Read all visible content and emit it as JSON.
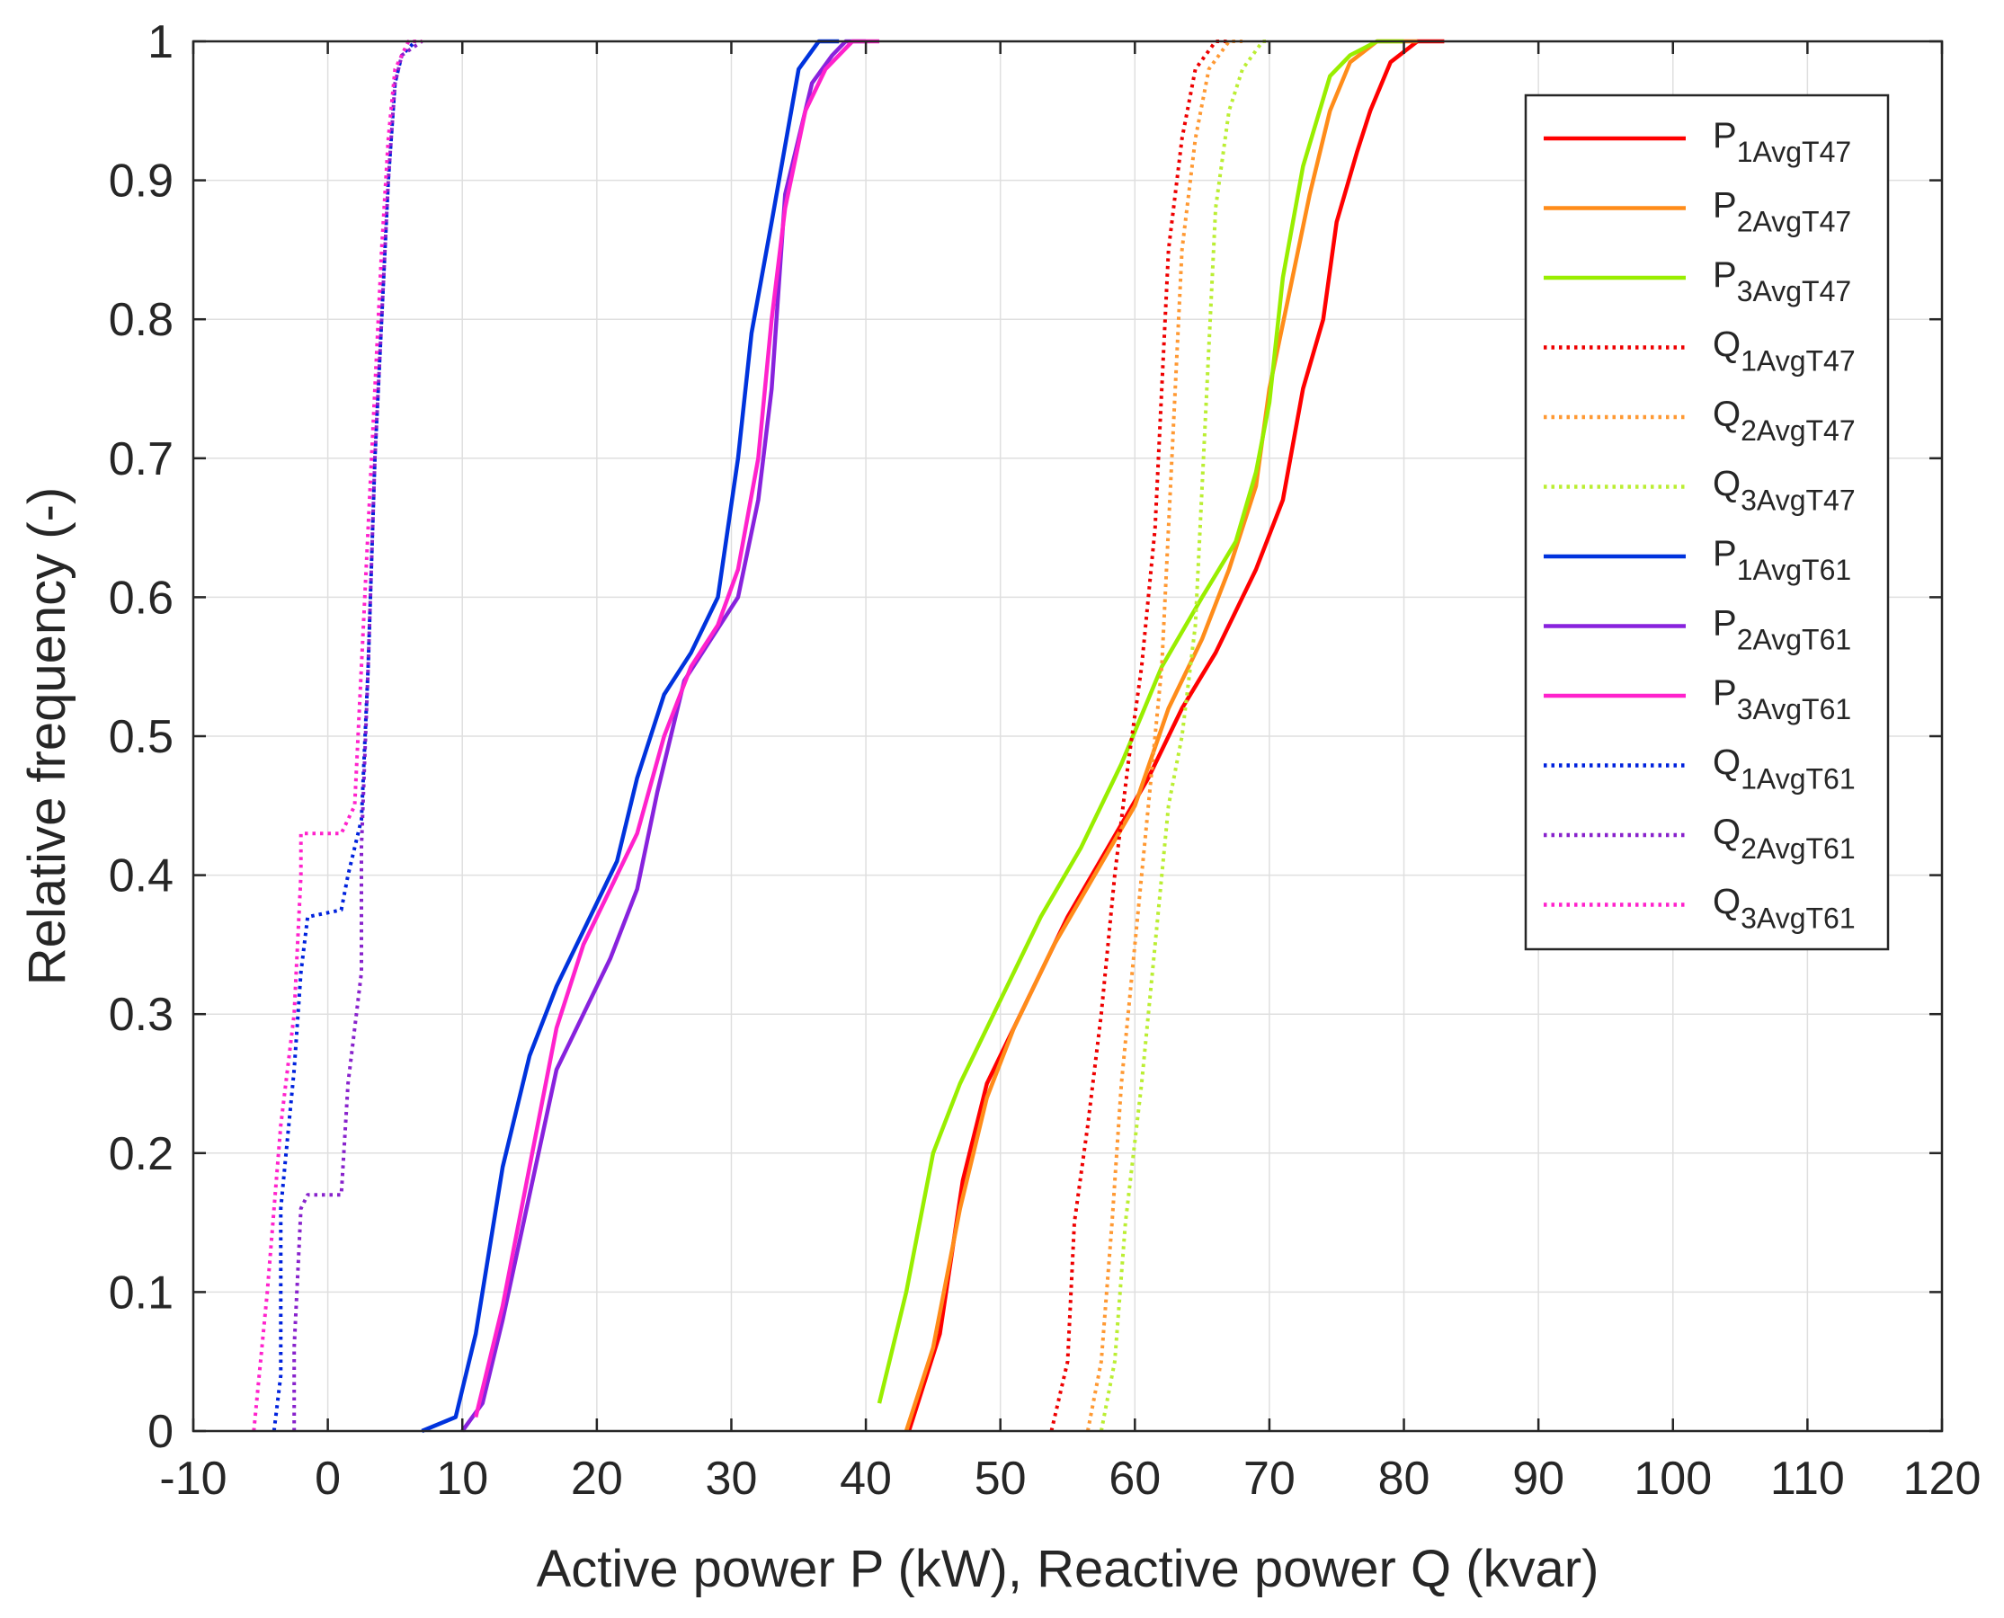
{
  "chart_data": {
    "type": "line",
    "title": "",
    "xlabel": "Active power P (kW), Reactive power Q (kvar)",
    "ylabel": "Relative frequency (-)",
    "xlim": [
      -10,
      120
    ],
    "ylim": [
      0,
      1
    ],
    "xticks": [
      -10,
      0,
      10,
      20,
      30,
      40,
      50,
      60,
      70,
      80,
      90,
      100,
      110,
      120
    ],
    "yticks": [
      0,
      0.1,
      0.2,
      0.3,
      0.4,
      0.5,
      0.6,
      0.7,
      0.8,
      0.9,
      1
    ],
    "xtick_labels": [
      "-10",
      "0",
      "10",
      "20",
      "30",
      "40",
      "50",
      "60",
      "70",
      "80",
      "90",
      "100",
      "110",
      "120"
    ],
    "ytick_labels": [
      "0",
      "0.1",
      "0.2",
      "0.3",
      "0.4",
      "0.5",
      "0.6",
      "0.7",
      "0.8",
      "0.9",
      "1"
    ],
    "grid": true,
    "legend_position": "top-right",
    "series": [
      {
        "id": "p1-avg-t47",
        "base": "P",
        "sub": "1AvgT47",
        "color": "#ff0000",
        "style": "solid",
        "points": [
          [
            43.2,
            0
          ],
          [
            45.5,
            0.07
          ],
          [
            47.2,
            0.18
          ],
          [
            49,
            0.25
          ],
          [
            52,
            0.31
          ],
          [
            55,
            0.37
          ],
          [
            58,
            0.42
          ],
          [
            61,
            0.47
          ],
          [
            63.5,
            0.52
          ],
          [
            66,
            0.56
          ],
          [
            69,
            0.62
          ],
          [
            71,
            0.67
          ],
          [
            72.5,
            0.75
          ],
          [
            74,
            0.8
          ],
          [
            75,
            0.87
          ],
          [
            76.5,
            0.92
          ],
          [
            77.5,
            0.95
          ],
          [
            79,
            0.985
          ],
          [
            81,
            1.0
          ],
          [
            83,
            1.0
          ]
        ]
      },
      {
        "id": "p2-avg-t47",
        "base": "P",
        "sub": "2AvgT47",
        "color": "#ff8c1a",
        "style": "solid",
        "points": [
          [
            43,
            0
          ],
          [
            45,
            0.06
          ],
          [
            47,
            0.16
          ],
          [
            49,
            0.24
          ],
          [
            51,
            0.29
          ],
          [
            54,
            0.35
          ],
          [
            57,
            0.4
          ],
          [
            60,
            0.45
          ],
          [
            62.5,
            0.52
          ],
          [
            65,
            0.57
          ],
          [
            67,
            0.62
          ],
          [
            69,
            0.68
          ],
          [
            70,
            0.75
          ],
          [
            71.5,
            0.82
          ],
          [
            73,
            0.89
          ],
          [
            74.5,
            0.95
          ],
          [
            76,
            0.985
          ],
          [
            78,
            1.0
          ],
          [
            81,
            1.0
          ]
        ]
      },
      {
        "id": "p3-avg-t47",
        "base": "P",
        "sub": "3AvgT47",
        "color": "#99ee00",
        "style": "solid",
        "points": [
          [
            41,
            0.02
          ],
          [
            43,
            0.1
          ],
          [
            45,
            0.2
          ],
          [
            47,
            0.25
          ],
          [
            50,
            0.31
          ],
          [
            53,
            0.37
          ],
          [
            56,
            0.42
          ],
          [
            59,
            0.48
          ],
          [
            62,
            0.55
          ],
          [
            65,
            0.6
          ],
          [
            67.5,
            0.64
          ],
          [
            69,
            0.69
          ],
          [
            70,
            0.74
          ],
          [
            71,
            0.83
          ],
          [
            72.5,
            0.91
          ],
          [
            74.5,
            0.975
          ],
          [
            76,
            0.99
          ],
          [
            78,
            1.0
          ],
          [
            80,
            1.0
          ]
        ]
      },
      {
        "id": "q1-avg-t47",
        "base": "Q",
        "sub": "1AvgT47",
        "color": "#ee0000",
        "style": "dotted",
        "points": [
          [
            53.8,
            0
          ],
          [
            55,
            0.05
          ],
          [
            55.5,
            0.15
          ],
          [
            56.5,
            0.22
          ],
          [
            57.5,
            0.3
          ],
          [
            58.5,
            0.4
          ],
          [
            59.5,
            0.48
          ],
          [
            60.5,
            0.55
          ],
          [
            61.5,
            0.65
          ],
          [
            62,
            0.75
          ],
          [
            62.5,
            0.85
          ],
          [
            63.5,
            0.93
          ],
          [
            64.5,
            0.98
          ],
          [
            66,
            1.0
          ],
          [
            67,
            1.0
          ]
        ]
      },
      {
        "id": "q2-avg-t47",
        "base": "Q",
        "sub": "2AvgT47",
        "color": "#ff9933",
        "style": "dotted",
        "points": [
          [
            56.5,
            0
          ],
          [
            57.5,
            0.05
          ],
          [
            58.3,
            0.15
          ],
          [
            59,
            0.25
          ],
          [
            60,
            0.35
          ],
          [
            61,
            0.45
          ],
          [
            62,
            0.55
          ],
          [
            62.5,
            0.65
          ],
          [
            63,
            0.75
          ],
          [
            63.5,
            0.85
          ],
          [
            64.5,
            0.93
          ],
          [
            65.5,
            0.98
          ],
          [
            67,
            1.0
          ],
          [
            68,
            1.0
          ]
        ]
      },
      {
        "id": "q3-avg-t47",
        "base": "Q",
        "sub": "3AvgT47",
        "color": "#bbee33",
        "style": "dotted",
        "points": [
          [
            57.5,
            0
          ],
          [
            58.5,
            0.05
          ],
          [
            59.3,
            0.15
          ],
          [
            60.5,
            0.25
          ],
          [
            61.5,
            0.35
          ],
          [
            62.5,
            0.45
          ],
          [
            63.5,
            0.5
          ],
          [
            64.5,
            0.58
          ],
          [
            65,
            0.68
          ],
          [
            65.5,
            0.78
          ],
          [
            66,
            0.88
          ],
          [
            67,
            0.95
          ],
          [
            68,
            0.98
          ],
          [
            69.5,
            1.0
          ],
          [
            70,
            1.0
          ]
        ]
      },
      {
        "id": "p1-avg-t61",
        "base": "P",
        "sub": "1AvgT61",
        "color": "#0033dd",
        "style": "solid",
        "points": [
          [
            7,
            0
          ],
          [
            9.5,
            0.01
          ],
          [
            11,
            0.07
          ],
          [
            13,
            0.19
          ],
          [
            15,
            0.27
          ],
          [
            17,
            0.32
          ],
          [
            19.5,
            0.37
          ],
          [
            21.5,
            0.41
          ],
          [
            23,
            0.47
          ],
          [
            25,
            0.53
          ],
          [
            27,
            0.56
          ],
          [
            29,
            0.6
          ],
          [
            30.5,
            0.7
          ],
          [
            31.5,
            0.79
          ],
          [
            33,
            0.87
          ],
          [
            35,
            0.98
          ],
          [
            36.5,
            1.0
          ],
          [
            38,
            1.0
          ]
        ]
      },
      {
        "id": "p2-avg-t61",
        "base": "P",
        "sub": "2AvgT61",
        "color": "#8822dd",
        "style": "solid",
        "points": [
          [
            10,
            0
          ],
          [
            11.5,
            0.02
          ],
          [
            13,
            0.08
          ],
          [
            15,
            0.17
          ],
          [
            17,
            0.26
          ],
          [
            19,
            0.3
          ],
          [
            21,
            0.34
          ],
          [
            23,
            0.39
          ],
          [
            24.5,
            0.46
          ],
          [
            26.5,
            0.54
          ],
          [
            28.5,
            0.57
          ],
          [
            30.5,
            0.6
          ],
          [
            32,
            0.67
          ],
          [
            33,
            0.75
          ],
          [
            34,
            0.89
          ],
          [
            36,
            0.97
          ],
          [
            37.5,
            0.99
          ],
          [
            38.5,
            1.0
          ],
          [
            40,
            1.0
          ]
        ]
      },
      {
        "id": "p3-avg-t61",
        "base": "P",
        "sub": "3AvgT61",
        "color": "#ff22cc",
        "style": "solid",
        "points": [
          [
            11,
            0.01
          ],
          [
            13,
            0.09
          ],
          [
            15,
            0.19
          ],
          [
            17,
            0.29
          ],
          [
            19,
            0.35
          ],
          [
            21,
            0.39
          ],
          [
            23,
            0.43
          ],
          [
            25,
            0.5
          ],
          [
            27,
            0.55
          ],
          [
            29,
            0.58
          ],
          [
            30.5,
            0.62
          ],
          [
            32,
            0.7
          ],
          [
            33,
            0.8
          ],
          [
            34,
            0.88
          ],
          [
            35.5,
            0.95
          ],
          [
            37,
            0.98
          ],
          [
            39,
            1.0
          ],
          [
            41,
            1.0
          ]
        ]
      },
      {
        "id": "q1-avg-t61",
        "base": "Q",
        "sub": "1AvgT61",
        "color": "#0022dd",
        "style": "dotted",
        "points": [
          [
            -4,
            0
          ],
          [
            -3.5,
            0.04
          ],
          [
            -3.5,
            0.16
          ],
          [
            -3,
            0.21
          ],
          [
            -2.5,
            0.26
          ],
          [
            -2,
            0.33
          ],
          [
            -1.5,
            0.37
          ],
          [
            1,
            0.375
          ],
          [
            1.5,
            0.4
          ],
          [
            2.5,
            0.44
          ],
          [
            3,
            0.55
          ],
          [
            3.5,
            0.7
          ],
          [
            4,
            0.8
          ],
          [
            4.5,
            0.9
          ],
          [
            5,
            0.97
          ],
          [
            5.5,
            0.99
          ],
          [
            6.5,
            1.0
          ]
        ]
      },
      {
        "id": "q2-avg-t61",
        "base": "Q",
        "sub": "2AvgT61",
        "color": "#8822cc",
        "style": "dotted",
        "points": [
          [
            -2.5,
            0
          ],
          [
            -2.5,
            0.06
          ],
          [
            -2,
            0.16
          ],
          [
            -1.5,
            0.17
          ],
          [
            1,
            0.17
          ],
          [
            1.5,
            0.25
          ],
          [
            2.5,
            0.33
          ],
          [
            2.5,
            0.42
          ],
          [
            3,
            0.55
          ],
          [
            3.5,
            0.7
          ],
          [
            4,
            0.8
          ],
          [
            4.5,
            0.9
          ],
          [
            5,
            0.97
          ],
          [
            5.5,
            0.99
          ],
          [
            7,
            1.0
          ]
        ]
      },
      {
        "id": "q3-avg-t61",
        "base": "Q",
        "sub": "3AvgT61",
        "color": "#ff22cc",
        "style": "dotted",
        "points": [
          [
            -5.5,
            0
          ],
          [
            -4.5,
            0.1
          ],
          [
            -3.5,
            0.22
          ],
          [
            -2.5,
            0.3
          ],
          [
            -2,
            0.4
          ],
          [
            -2,
            0.43
          ],
          [
            1,
            0.43
          ],
          [
            2,
            0.45
          ],
          [
            2.5,
            0.55
          ],
          [
            3,
            0.65
          ],
          [
            3.5,
            0.75
          ],
          [
            4,
            0.85
          ],
          [
            4.5,
            0.93
          ],
          [
            5,
            0.98
          ],
          [
            6,
            1.0
          ],
          [
            7,
            1.0
          ]
        ]
      }
    ]
  }
}
